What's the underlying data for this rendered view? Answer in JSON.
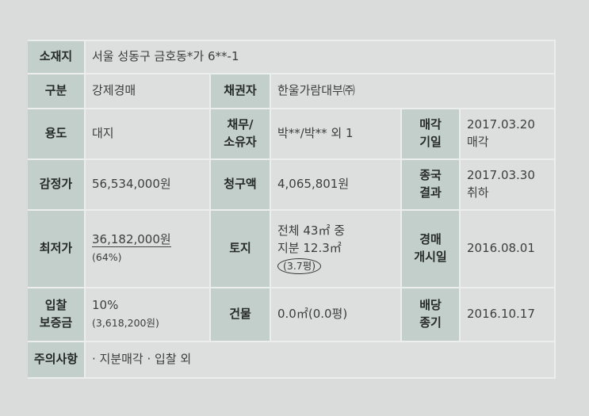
{
  "table": {
    "rows": [
      [
        [
          "소재지"
        ],
        [
          "서울 성동구 금호동*가 6**-1"
        ]
      ],
      [
        [
          "구분"
        ],
        [
          "강제경매"
        ],
        [
          "채권자"
        ],
        [
          "한울가람대부㈜"
        ]
      ],
      [
        [
          "용도"
        ],
        [
          "대지"
        ],
        [
          "채무/",
          "소유자"
        ],
        [
          "박**/박** 외 1"
        ],
        [
          "매각",
          "기일"
        ],
        [
          "2017.03.20",
          "매각"
        ]
      ],
      [
        [
          "감정가"
        ],
        [
          "56,534,000원"
        ],
        [
          "청구액"
        ],
        [
          "4,065,801원"
        ],
        [
          "종국",
          "결과"
        ],
        [
          "2017.03.30",
          "취하"
        ]
      ],
      [
        [
          "최저가"
        ],
        [
          "36,182,000원",
          "(64%)"
        ],
        [
          "토지"
        ],
        [
          "전체 43㎡ 중",
          "지분 12.3㎡",
          "(3.7평)"
        ],
        [
          "경매",
          "개시일"
        ],
        [
          "2016.08.01"
        ]
      ],
      [
        [
          "입찰",
          "보증금"
        ],
        [
          "10%",
          "(3,618,200원)"
        ],
        [
          "건물"
        ],
        [
          "0.0㎡(0.0평)"
        ],
        [
          "배당",
          "종기"
        ],
        [
          "2016.10.17"
        ]
      ],
      [
        [
          "주의사항"
        ],
        [
          "· 지분매각 · 입찰 외"
        ]
      ]
    ]
  }
}
